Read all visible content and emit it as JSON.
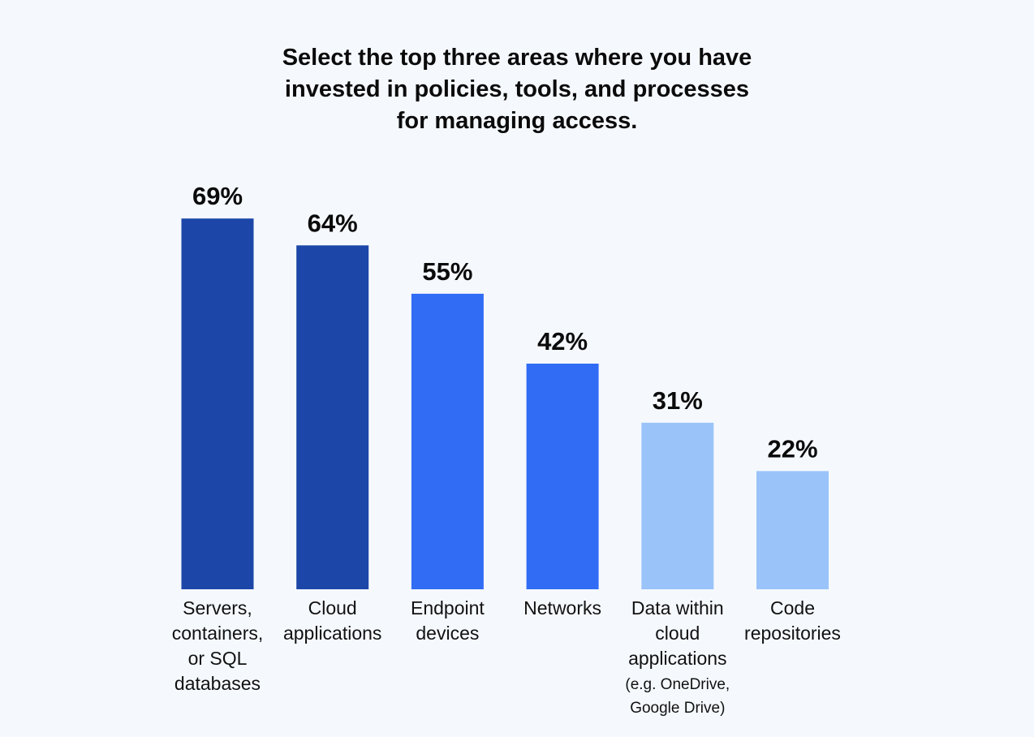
{
  "chart_data": {
    "type": "bar",
    "title_lines": [
      "Select the top three areas where you have",
      "invested in policies, tools, and processes",
      "for managing access."
    ],
    "categories": [
      "Servers, containers, or SQL databases",
      "Cloud applications",
      "Endpoint devices",
      "Networks",
      "Data within cloud applications",
      "Code repositories"
    ],
    "category_label_lines": [
      [
        "Servers,",
        "containers,",
        "or SQL",
        "databases"
      ],
      [
        "Cloud",
        "applications"
      ],
      [
        "Endpoint",
        "devices"
      ],
      [
        "Networks"
      ],
      [
        "Data within",
        "cloud",
        "applications"
      ],
      [
        "Code",
        "repositories"
      ]
    ],
    "category_notes": [
      [],
      [],
      [],
      [],
      [
        "(e.g. OneDrive,",
        "Google Drive)"
      ],
      []
    ],
    "values": [
      69,
      64,
      55,
      42,
      31,
      22
    ],
    "value_labels": [
      "69%",
      "64%",
      "55%",
      "42%",
      "31%",
      "22%"
    ],
    "bar_colors": [
      "#1c47a8",
      "#1c47a8",
      "#316cf4",
      "#316cf4",
      "#9ac3f9",
      "#9ac3f9"
    ],
    "ylim": [
      0,
      100
    ],
    "grid": false,
    "legend": "none",
    "xlabel": "",
    "ylabel": ""
  }
}
